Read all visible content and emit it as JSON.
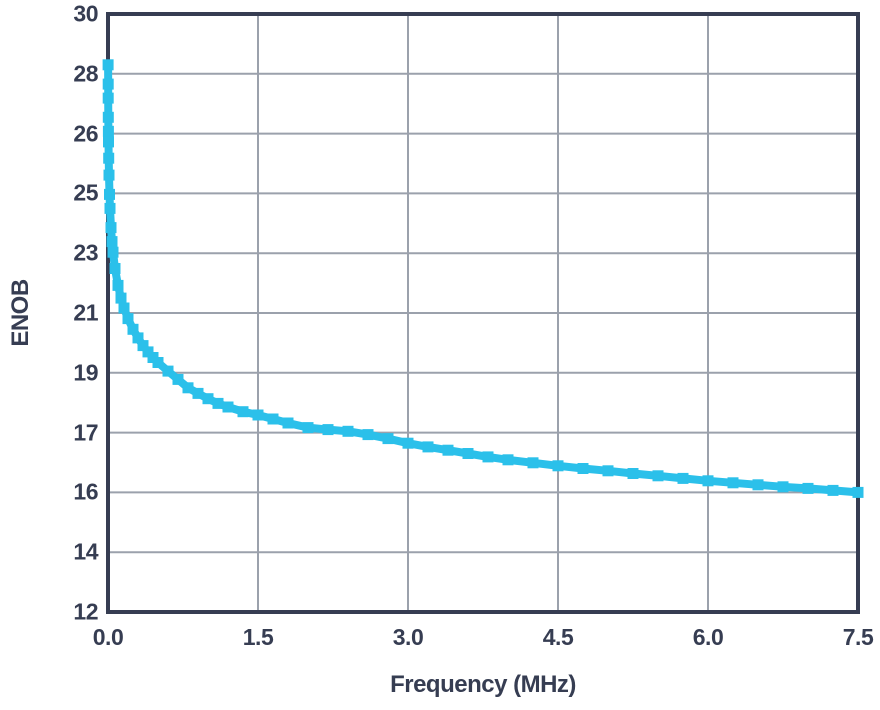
{
  "colors": {
    "curve": "#2bc0ea",
    "axis": "#363d52",
    "grid": "#9ba1ac",
    "text": "#363d52",
    "background": "#ffffff"
  },
  "chart_data": {
    "type": "line",
    "title": "",
    "xlabel": "Frequency (MHz)",
    "ylabel": "ENOB",
    "xlim": [
      0,
      7.5
    ],
    "ylim": [
      12,
      30
    ],
    "grid": true,
    "legend": false,
    "x_ticks": [
      {
        "value": 0.0,
        "label": "0.0"
      },
      {
        "value": 1.5,
        "label": "1.5"
      },
      {
        "value": 3.0,
        "label": "3.0"
      },
      {
        "value": 4.5,
        "label": "4.5"
      },
      {
        "value": 6.0,
        "label": "6.0"
      },
      {
        "value": 7.5,
        "label": "7.5"
      }
    ],
    "y_ticks_note": "gridlines evenly spaced from 12 to 30 in steps of 1.8; labels shown rounded to integers as in source image",
    "y_ticks": [
      {
        "value": 30.0,
        "label": "30"
      },
      {
        "value": 28.2,
        "label": "28"
      },
      {
        "value": 26.4,
        "label": "26"
      },
      {
        "value": 24.6,
        "label": "25"
      },
      {
        "value": 22.8,
        "label": "23"
      },
      {
        "value": 21.0,
        "label": "21"
      },
      {
        "value": 19.2,
        "label": "19"
      },
      {
        "value": 17.4,
        "label": "17"
      },
      {
        "value": 15.6,
        "label": "16"
      },
      {
        "value": 13.8,
        "label": "14"
      },
      {
        "value": 12.0,
        "label": "12"
      }
    ],
    "series": [
      {
        "name": "ENOB",
        "marker": "square",
        "points": [
          [
            0.001,
            28.47
          ],
          [
            0.0015,
            27.89
          ],
          [
            0.002,
            27.47
          ],
          [
            0.003,
            26.89
          ],
          [
            0.004,
            26.47
          ],
          [
            0.005,
            26.15
          ],
          [
            0.007,
            25.66
          ],
          [
            0.01,
            25.15
          ],
          [
            0.015,
            24.57
          ],
          [
            0.02,
            24.15
          ],
          [
            0.03,
            23.57
          ],
          [
            0.04,
            23.15
          ],
          [
            0.05,
            22.83
          ],
          [
            0.07,
            22.34
          ],
          [
            0.1,
            21.83
          ],
          [
            0.13,
            21.45
          ],
          [
            0.16,
            21.15
          ],
          [
            0.2,
            20.83
          ],
          [
            0.25,
            20.51
          ],
          [
            0.3,
            20.25
          ],
          [
            0.35,
            20.02
          ],
          [
            0.4,
            19.83
          ],
          [
            0.45,
            19.66
          ],
          [
            0.5,
            19.51
          ],
          [
            0.6,
            19.25
          ],
          [
            0.7,
            19.0
          ],
          [
            0.8,
            18.75
          ],
          [
            0.9,
            18.58
          ],
          [
            1.0,
            18.42
          ],
          [
            1.1,
            18.28
          ],
          [
            1.2,
            18.17
          ],
          [
            1.35,
            18.03
          ],
          [
            1.5,
            17.93
          ],
          [
            1.65,
            17.81
          ],
          [
            1.8,
            17.69
          ],
          [
            2.0,
            17.55
          ],
          [
            2.2,
            17.49
          ],
          [
            2.4,
            17.44
          ],
          [
            2.6,
            17.34
          ],
          [
            2.8,
            17.22
          ],
          [
            3.0,
            17.08
          ],
          [
            3.2,
            16.97
          ],
          [
            3.4,
            16.87
          ],
          [
            3.6,
            16.77
          ],
          [
            3.8,
            16.67
          ],
          [
            4.0,
            16.58
          ],
          [
            4.25,
            16.49
          ],
          [
            4.5,
            16.4
          ],
          [
            4.75,
            16.32
          ],
          [
            5.0,
            16.25
          ],
          [
            5.25,
            16.17
          ],
          [
            5.5,
            16.1
          ],
          [
            5.75,
            16.02
          ],
          [
            6.0,
            15.95
          ],
          [
            6.25,
            15.89
          ],
          [
            6.5,
            15.83
          ],
          [
            6.75,
            15.77
          ],
          [
            7.0,
            15.72
          ],
          [
            7.25,
            15.66
          ],
          [
            7.5,
            15.6
          ]
        ]
      }
    ]
  }
}
